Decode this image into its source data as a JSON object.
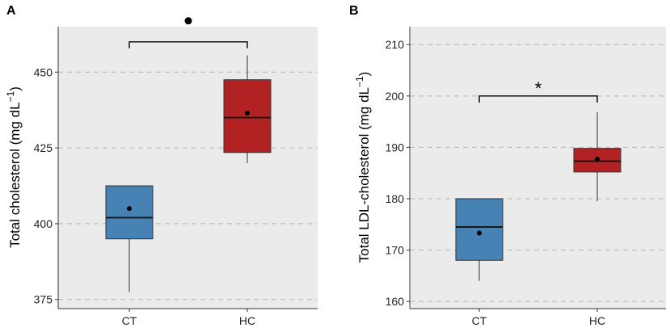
{
  "chart_data": [
    {
      "panel": "A",
      "type": "box",
      "ylabel": "Total cholesterol (mg dL",
      "ylabel_sup": "−1",
      "ylabel_close": ")",
      "ylim": [
        372,
        465
      ],
      "yticks": [
        375,
        400,
        425,
        450
      ],
      "categories": [
        "CT",
        "HC"
      ],
      "boxes": [
        {
          "group": "CT",
          "min": 377.5,
          "q1": 395,
          "median": 402,
          "q3": 412.5,
          "max": 412.5,
          "mean": 405,
          "color": "#4682b4"
        },
        {
          "group": "HC",
          "min": 420,
          "q1": 423.5,
          "median": 435,
          "q3": 447.5,
          "max": 455.5,
          "mean": 436.5,
          "color": "#b22222"
        }
      ],
      "significance": {
        "from": "CT",
        "to": "HC",
        "y": 460,
        "symbol": "●"
      }
    },
    {
      "panel": "B",
      "type": "box",
      "ylabel": "Total LDL-cholesterol (mg dL",
      "ylabel_sup": "−1",
      "ylabel_close": ")",
      "ylim": [
        158.6,
        213.5
      ],
      "yticks": [
        160,
        170,
        180,
        190,
        200,
        210
      ],
      "categories": [
        "CT",
        "HC"
      ],
      "boxes": [
        {
          "group": "CT",
          "min": 164,
          "q1": 168,
          "median": 174.5,
          "q3": 180,
          "max": 180,
          "mean": 173.3,
          "color": "#4682b4"
        },
        {
          "group": "HC",
          "min": 179.5,
          "q1": 185.2,
          "median": 187.3,
          "q3": 189.8,
          "max": 196.8,
          "mean": 187.7,
          "color": "#b22222"
        }
      ],
      "significance": {
        "from": "CT",
        "to": "HC",
        "y": 200,
        "symbol": "*"
      }
    }
  ]
}
